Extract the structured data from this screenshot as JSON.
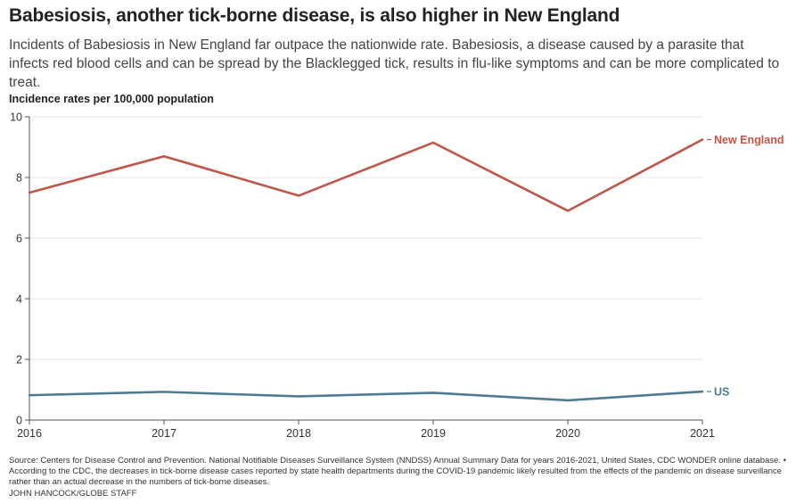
{
  "chart_data": {
    "type": "line",
    "title": "Babesiosis, another tick-borne disease, is also higher in New England",
    "subtitle": "Incidents of Babesiosis in New England far outpace the nationwide rate. Babesiosis, a disease caused by a parasite that infects red blood cells and can be spread by the Blacklegged tick, results in flu-like symptoms and can be more complicated to treat.",
    "ylabel": "Incidence rates per 100,000 population",
    "xlabel": "",
    "x": [
      2016,
      2017,
      2018,
      2019,
      2020,
      2021
    ],
    "x_tick_labels": [
      "2016",
      "2017",
      "2018",
      "2019",
      "2020",
      "2021"
    ],
    "ylim": [
      0,
      10
    ],
    "y_ticks": [
      0,
      2,
      4,
      6,
      8,
      10
    ],
    "y_tick_labels": [
      "0",
      "2",
      "4",
      "6",
      "8",
      "10"
    ],
    "grid": true,
    "series": [
      {
        "name": "New England",
        "color": "#c0564a",
        "values": [
          7.5,
          8.7,
          7.4,
          9.15,
          6.9,
          9.25
        ]
      },
      {
        "name": "US",
        "color": "#4f7a92",
        "values": [
          0.82,
          0.93,
          0.78,
          0.9,
          0.65,
          0.94
        ]
      }
    ],
    "legend": "end-of-line labels"
  },
  "footnote": "Source: Centers for Disease Control and Prevention. National Notifiable Diseases Surveillance System (NNDSS) Annual Summary Data for years 2016-2021, United States, CDC WONDER online database. • According to the CDC, the decreases in tick-borne disease cases reported by state health departments during the COVID-19 pandemic likely resulted from the effects of the pandemic on disease surveillance rather than an actual decrease in the numbers of tick-borne diseases.",
  "credit": "JOHN HANCOCK/GLOBE STAFF"
}
